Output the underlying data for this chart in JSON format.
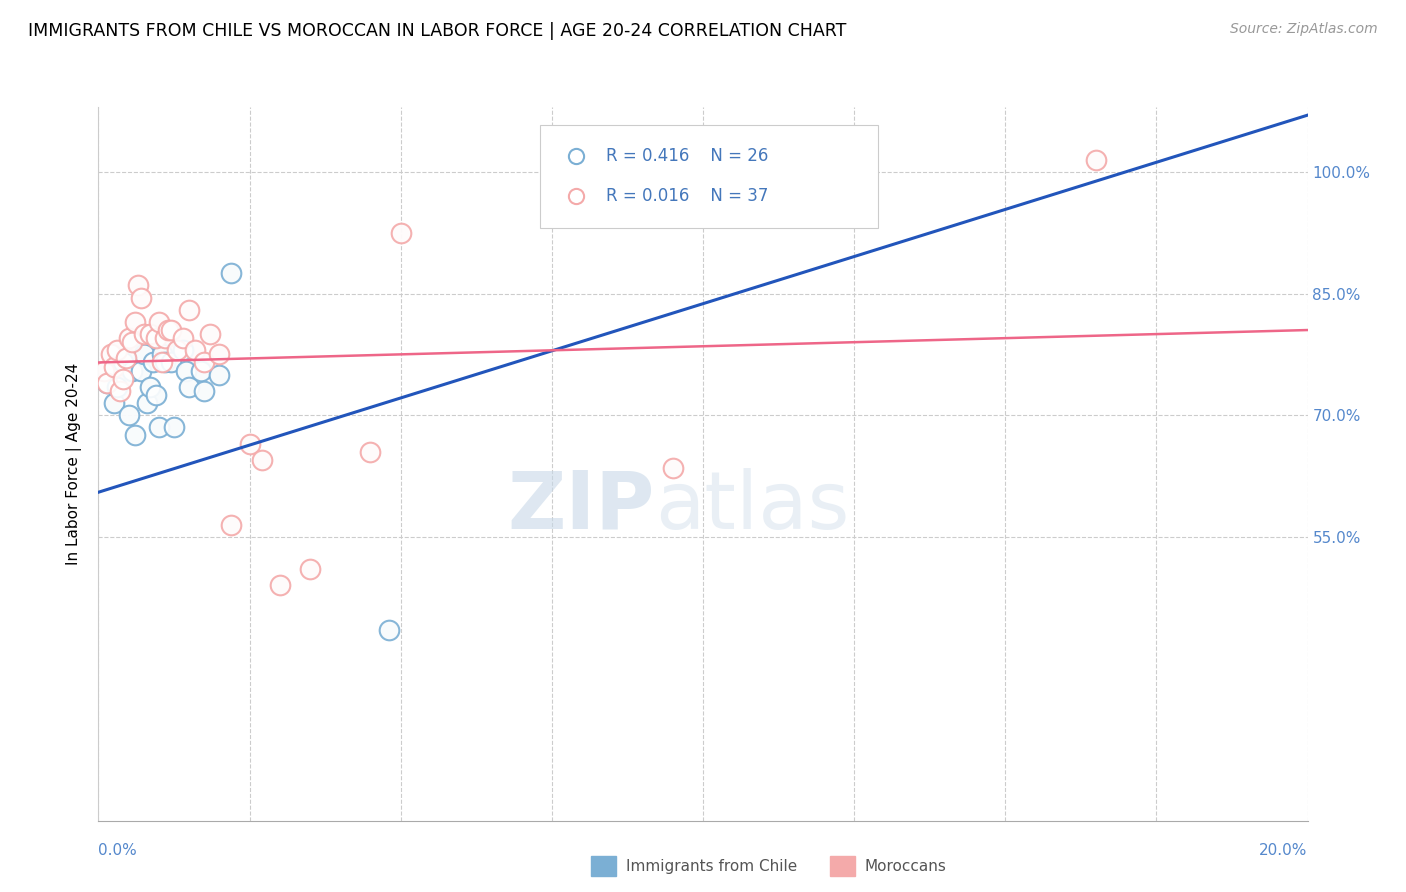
{
  "title": "IMMIGRANTS FROM CHILE VS MOROCCAN IN LABOR FORCE | AGE 20-24 CORRELATION CHART",
  "source": "Source: ZipAtlas.com",
  "ylabel": "In Labor Force | Age 20-24",
  "xlim": [
    0.0,
    20.0
  ],
  "ylim": [
    20.0,
    108.0
  ],
  "ytick_vals": [
    55.0,
    70.0,
    85.0,
    100.0
  ],
  "ytick_labels": [
    "55.0%",
    "70.0%",
    "85.0%",
    "100.0%"
  ],
  "xtick_vals": [
    0.0,
    2.5,
    5.0,
    7.5,
    10.0,
    12.5,
    15.0,
    17.5,
    20.0
  ],
  "legend_r_chile": "R = 0.416",
  "legend_n_chile": "N = 26",
  "legend_r_moroccan": "R = 0.016",
  "legend_n_moroccan": "N = 37",
  "chile_color": "#7BAFD4",
  "moroccan_color": "#F4AAAA",
  "chile_line_color": "#2255BB",
  "moroccan_line_color": "#EE6688",
  "watermark_zip": "ZIP",
  "watermark_atlas": "atlas",
  "background_color": "#FFFFFF",
  "grid_color": "#CCCCCC",
  "chile_points_x": [
    0.15,
    0.25,
    0.3,
    0.4,
    0.5,
    0.55,
    0.6,
    0.7,
    0.75,
    0.8,
    0.85,
    0.9,
    0.95,
    1.0,
    1.05,
    1.1,
    1.2,
    1.25,
    1.4,
    1.45,
    1.5,
    1.7,
    1.75,
    2.0,
    2.2,
    4.8
  ],
  "chile_points_y": [
    74.0,
    71.5,
    73.5,
    76.5,
    70.0,
    75.5,
    67.5,
    75.5,
    77.5,
    71.5,
    73.5,
    76.5,
    72.5,
    68.5,
    77.5,
    76.5,
    76.5,
    68.5,
    78.0,
    75.5,
    73.5,
    75.5,
    73.0,
    75.0,
    87.5,
    43.5
  ],
  "moroccan_points_x": [
    0.1,
    0.15,
    0.2,
    0.25,
    0.3,
    0.35,
    0.4,
    0.45,
    0.5,
    0.55,
    0.6,
    0.65,
    0.7,
    0.75,
    0.85,
    0.95,
    1.0,
    1.05,
    1.1,
    1.15,
    1.2,
    1.3,
    1.4,
    1.5,
    1.6,
    1.75,
    1.85,
    2.0,
    2.2,
    2.5,
    2.7,
    3.0,
    3.5,
    4.5,
    5.0,
    9.5,
    16.5
  ],
  "moroccan_points_y": [
    75.5,
    74.0,
    77.5,
    76.0,
    78.0,
    73.0,
    74.5,
    77.0,
    79.5,
    79.0,
    81.5,
    86.0,
    84.5,
    80.0,
    80.0,
    79.5,
    81.5,
    76.5,
    79.5,
    80.5,
    80.5,
    78.0,
    79.5,
    83.0,
    78.0,
    76.5,
    80.0,
    77.5,
    56.5,
    66.5,
    64.5,
    49.0,
    51.0,
    65.5,
    92.5,
    63.5,
    101.5
  ],
  "chile_trend_x": [
    0.0,
    20.0
  ],
  "chile_trend_y": [
    60.5,
    107.0
  ],
  "moroccan_trend_x": [
    0.0,
    20.0
  ],
  "moroccan_trend_y": [
    76.5,
    80.5
  ]
}
